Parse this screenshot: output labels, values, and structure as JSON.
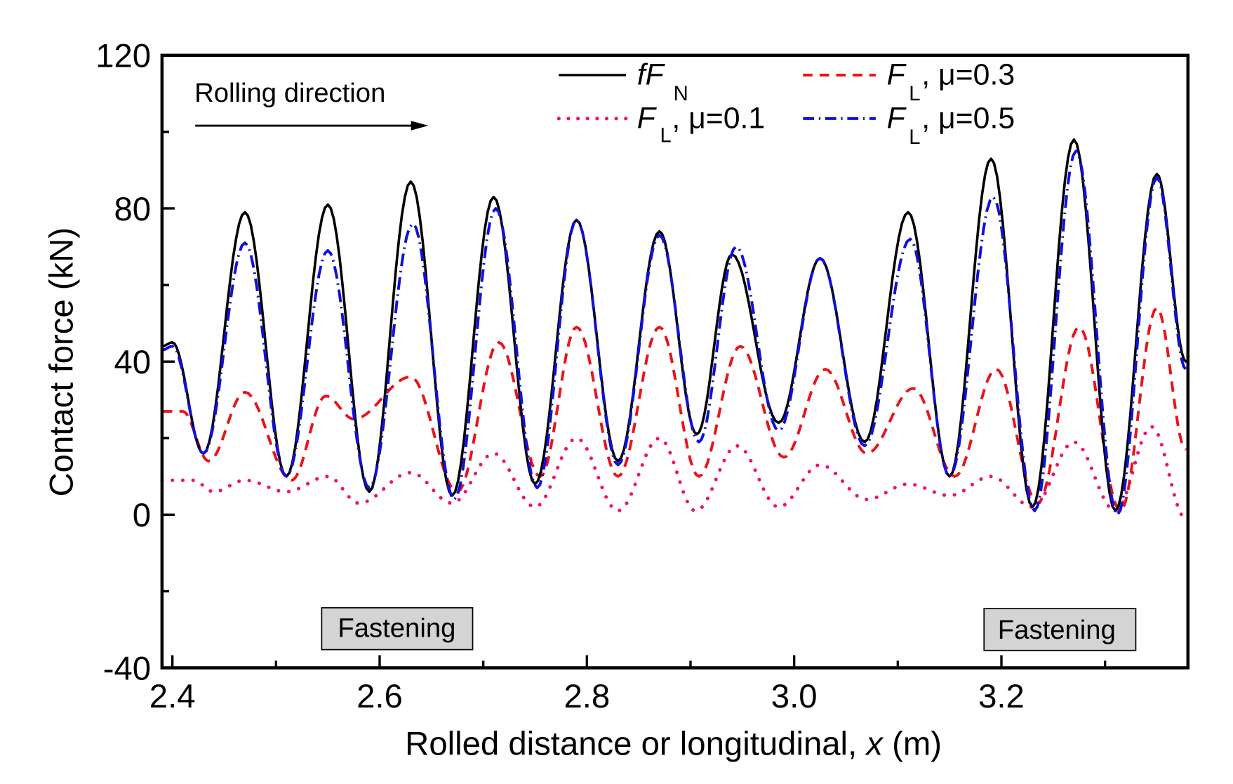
{
  "chart_data": {
    "type": "line",
    "title": "",
    "xlabel_prefix": "Rolled distance or longitudinal, ",
    "xlabel_var": "x",
    "xlabel_unit": " (m)",
    "ylabel": "Contact force (kN)",
    "xlim": [
      2.39,
      3.38
    ],
    "ylim": [
      -40,
      120
    ],
    "xticks": [
      2.4,
      2.6,
      2.8,
      3.0,
      3.2
    ],
    "xtick_labels": [
      "2.4",
      "2.6",
      "2.8",
      "3.0",
      "3.2"
    ],
    "xminor": [
      2.5,
      2.7,
      2.9,
      3.1,
      3.3
    ],
    "yticks": [
      -40,
      0,
      40,
      80,
      120
    ],
    "ytick_labels": [
      "-40",
      "0",
      "40",
      "80",
      "120"
    ],
    "yminor": [
      -20,
      20,
      60,
      100
    ],
    "grid": false,
    "legend_position": "top-right",
    "annotations": {
      "rolling_direction": "Rolling direction",
      "fastening_left": {
        "label": "Fastening",
        "x": 2.59
      },
      "fastening_right": {
        "label": "Fastening",
        "x": 3.26
      }
    },
    "series": [
      {
        "name": "fF_N",
        "legend_main": "fF",
        "legend_sub": "N",
        "legend_suffix": "",
        "color": "#000000",
        "style": "solid",
        "x": [
          2.39,
          2.4,
          2.43,
          2.47,
          2.51,
          2.55,
          2.59,
          2.63,
          2.67,
          2.71,
          2.75,
          2.79,
          2.83,
          2.87,
          2.906,
          2.94,
          2.985,
          3.025,
          3.068,
          3.11,
          3.15,
          3.19,
          3.23,
          3.27,
          3.31,
          3.35,
          3.378
        ],
        "y": [
          44,
          45,
          16,
          79,
          10,
          81,
          6,
          87,
          5,
          83,
          8,
          77,
          14,
          74,
          21,
          68,
          24,
          67,
          19,
          79,
          10,
          93,
          2,
          98,
          1,
          89,
          40
        ]
      },
      {
        "name": "F_L, mu=0.1",
        "legend_main": "F",
        "legend_sub": "L",
        "legend_suffix": ", μ=0.1",
        "color": "#ee1177",
        "style": "dotted",
        "x": [
          2.39,
          2.42,
          2.44,
          2.47,
          2.51,
          2.55,
          2.58,
          2.63,
          2.67,
          2.71,
          2.75,
          2.79,
          2.83,
          2.87,
          2.905,
          2.945,
          2.985,
          3.025,
          3.07,
          3.11,
          3.15,
          3.19,
          3.23,
          3.27,
          3.31,
          3.345,
          3.378
        ],
        "y": [
          9,
          9,
          6,
          9,
          6,
          10,
          3,
          11,
          3,
          16,
          2,
          20,
          1,
          20,
          1,
          18,
          2,
          13,
          4,
          8,
          5,
          10,
          2,
          19,
          1,
          23,
          -1
        ]
      },
      {
        "name": "F_L, mu=0.3",
        "legend_main": "F",
        "legend_sub": "L",
        "legend_suffix": ", μ=0.3",
        "color": "#e8141b",
        "style": "dashed",
        "x": [
          2.39,
          2.41,
          2.435,
          2.47,
          2.515,
          2.548,
          2.575,
          2.63,
          2.675,
          2.715,
          2.755,
          2.79,
          2.83,
          2.87,
          2.908,
          2.948,
          2.99,
          3.03,
          3.07,
          3.115,
          3.155,
          3.195,
          3.235,
          3.275,
          3.315,
          3.35,
          3.378
        ],
        "y": [
          27,
          27,
          14,
          32,
          9,
          31,
          25,
          36,
          6,
          45,
          10,
          49,
          10,
          49,
          10,
          44,
          15,
          38,
          16,
          33,
          10,
          38,
          3,
          49,
          1,
          54,
          17
        ]
      },
      {
        "name": "F_L, mu=0.5",
        "legend_main": "F",
        "legend_sub": "L",
        "legend_suffix": ", μ=0.5",
        "color": "#1010dd",
        "style": "dashdot",
        "x": [
          2.39,
          2.4,
          2.43,
          2.47,
          2.51,
          2.55,
          2.59,
          2.632,
          2.672,
          2.712,
          2.752,
          2.79,
          2.83,
          2.87,
          2.908,
          2.944,
          2.985,
          3.025,
          3.068,
          3.112,
          3.15,
          3.192,
          3.232,
          3.272,
          3.312,
          3.35,
          3.378
        ],
        "y": [
          43,
          44,
          16,
          71,
          10,
          69,
          7,
          76,
          4,
          80,
          7,
          77,
          13,
          73,
          19,
          70,
          22,
          67,
          18,
          72,
          10,
          83,
          1,
          95,
          0,
          88,
          38
        ]
      }
    ]
  }
}
